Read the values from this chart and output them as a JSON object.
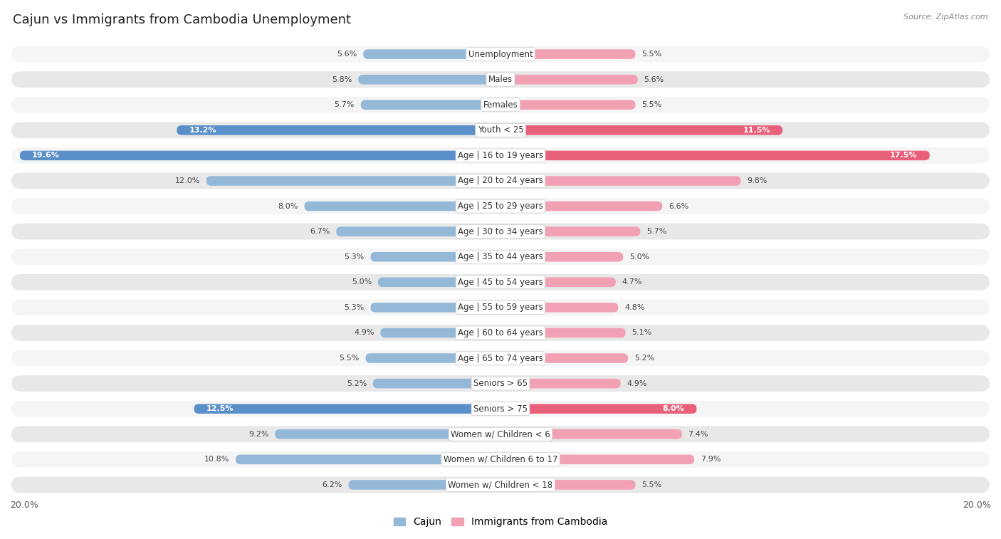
{
  "title": "Cajun vs Immigrants from Cambodia Unemployment",
  "source": "Source: ZipAtlas.com",
  "categories": [
    "Unemployment",
    "Males",
    "Females",
    "Youth < 25",
    "Age | 16 to 19 years",
    "Age | 20 to 24 years",
    "Age | 25 to 29 years",
    "Age | 30 to 34 years",
    "Age | 35 to 44 years",
    "Age | 45 to 54 years",
    "Age | 55 to 59 years",
    "Age | 60 to 64 years",
    "Age | 65 to 74 years",
    "Seniors > 65",
    "Seniors > 75",
    "Women w/ Children < 6",
    "Women w/ Children 6 to 17",
    "Women w/ Children < 18"
  ],
  "cajun_values": [
    5.6,
    5.8,
    5.7,
    13.2,
    19.6,
    12.0,
    8.0,
    6.7,
    5.3,
    5.0,
    5.3,
    4.9,
    5.5,
    5.2,
    12.5,
    9.2,
    10.8,
    6.2
  ],
  "cambodia_values": [
    5.5,
    5.6,
    5.5,
    11.5,
    17.5,
    9.8,
    6.6,
    5.7,
    5.0,
    4.7,
    4.8,
    5.1,
    5.2,
    4.9,
    8.0,
    7.4,
    7.9,
    5.5
  ],
  "cajun_color": "#94b8d8",
  "cambodia_color": "#f2a0b4",
  "cajun_highlight_color": "#5b8fc9",
  "cambodia_highlight_color": "#e8607a",
  "highlight_rows": [
    3,
    4,
    14
  ],
  "row_bg_odd": "#f5f5f5",
  "row_bg_even": "#e8e8e8",
  "xlim": 20.0,
  "legend_cajun": "Cajun",
  "legend_cambodia": "Immigrants from Cambodia",
  "title_fontsize": 13,
  "label_fontsize": 8.5,
  "value_fontsize": 8.0
}
